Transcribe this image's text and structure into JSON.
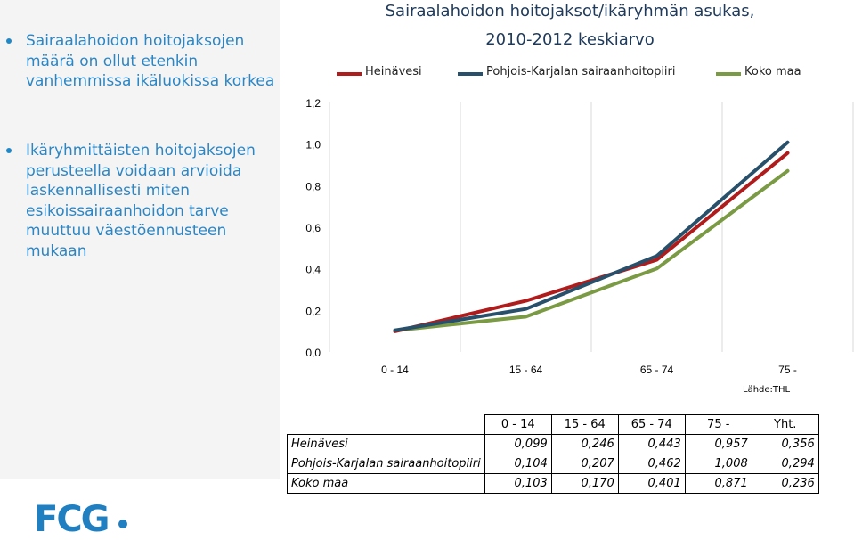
{
  "sidebar": {
    "bullets": [
      "Sairaalahoidon hoitojaksojen määrä on ollut etenkin vanhemmissa ikäluokissa korkea",
      "Ikäryhmittäisten hoitojaksojen perusteella voidaan arvioida laskennallisesti miten esikoissairaanhoidon tarve muuttuu väestöennusteen mukaan"
    ]
  },
  "logo": "FCG",
  "chart_data": {
    "type": "line",
    "title": "Sairaalahoidon hoitojaksot/ikäryhmän asukas,",
    "subtitle": "2010-2012 keskiarvo",
    "categories": [
      "0 - 14",
      "15 - 64",
      "65 - 74",
      "75 -"
    ],
    "y_ticks": [
      "0,0",
      "0,2",
      "0,4",
      "0,6",
      "0,8",
      "1,0",
      "1,2"
    ],
    "ylim": [
      0,
      1.2
    ],
    "grid": "vertical",
    "legend_position": "top",
    "series": [
      {
        "name": "Heinävesi",
        "values": [
          0.099,
          0.246,
          0.443,
          0.957
        ],
        "color": "#b01c1c"
      },
      {
        "name": "Pohjois-Karjalan sairaanhoitopiiri",
        "values": [
          0.104,
          0.207,
          0.462,
          1.008
        ],
        "color": "#28506a"
      },
      {
        "name": "Koko maa",
        "values": [
          0.103,
          0.17,
          0.401,
          0.871
        ],
        "color": "#7a9a43"
      }
    ],
    "source": "Lähde:THL"
  },
  "table": {
    "headers": [
      "0 - 14",
      "15 - 64",
      "65 - 74",
      "75 -",
      "Yht."
    ],
    "rows": [
      {
        "label": "Heinävesi",
        "values": [
          "0,099",
          "0,246",
          "0,443",
          "0,957",
          "0,356"
        ]
      },
      {
        "label": "Pohjois-Karjalan sairaanhoitopiiri",
        "values": [
          "0,104",
          "0,207",
          "0,462",
          "1,008",
          "0,294"
        ]
      },
      {
        "label": "Koko maa",
        "values": [
          "0,103",
          "0,170",
          "0,401",
          "0,871",
          "0,236"
        ]
      }
    ]
  }
}
